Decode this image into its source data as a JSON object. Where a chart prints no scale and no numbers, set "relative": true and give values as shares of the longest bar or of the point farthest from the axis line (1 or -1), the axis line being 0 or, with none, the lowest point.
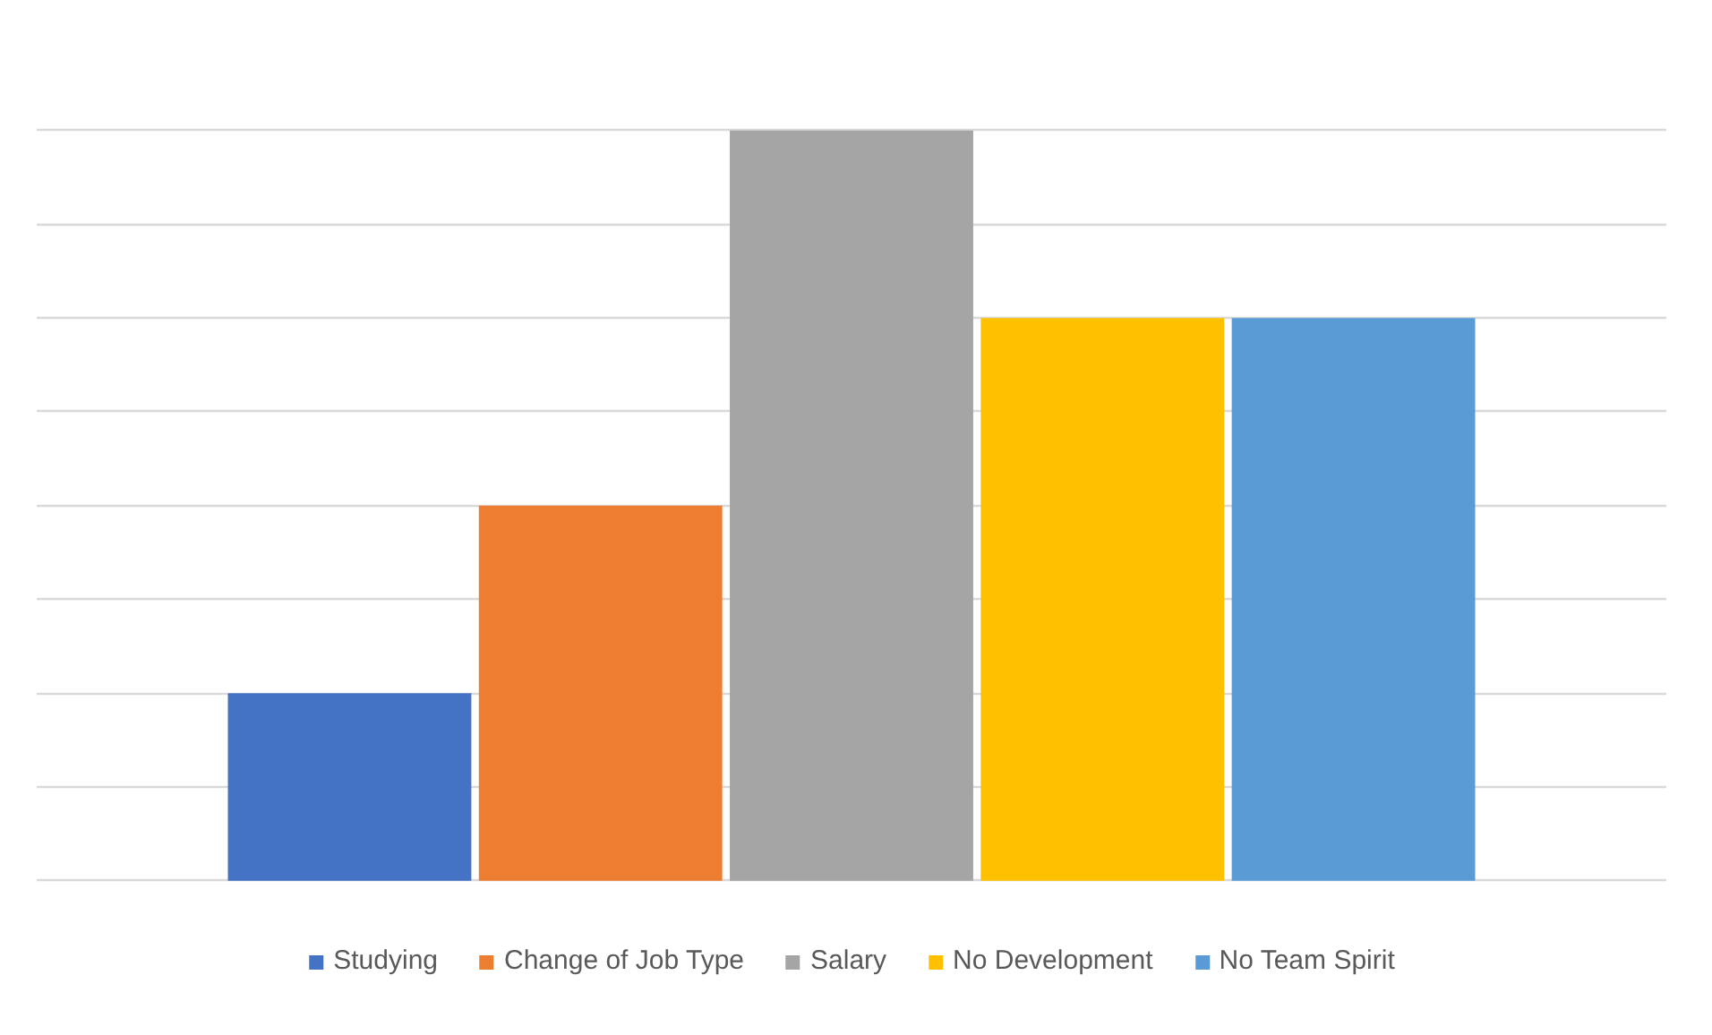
{
  "chart_data": {
    "type": "bar",
    "relative": true,
    "categories": [
      null
    ],
    "series": [
      {
        "name": "Studying",
        "color": "#4472c4",
        "values": [
          0.25
        ]
      },
      {
        "name": "Change of Job Type",
        "color": "#ed7d31",
        "values": [
          0.5
        ]
      },
      {
        "name": "Salary",
        "color": "#a5a5a5",
        "values": [
          1
        ]
      },
      {
        "name": "No Development",
        "color": "#ffc000",
        "values": [
          0.75
        ]
      },
      {
        "name": "No Team Spirit",
        "color": "#5b9bd5",
        "values": [
          0.75
        ]
      }
    ],
    "grid": "y",
    "legend": "bottom",
    "tick_labels": false
  }
}
